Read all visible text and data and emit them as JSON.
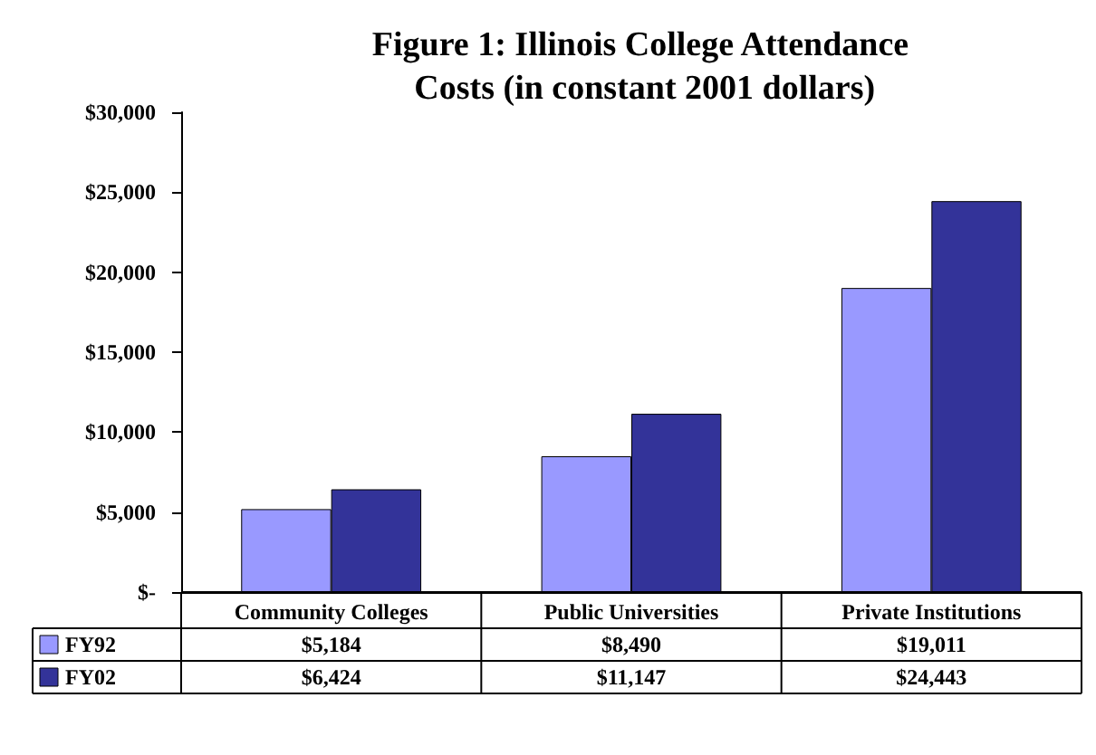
{
  "chart_data": {
    "type": "bar",
    "title": "Figure 1: Illinois College Attendance Costs (in constant 2001 dollars)",
    "categories": [
      "Community Colleges",
      "Public Universities",
      "Private Institutions"
    ],
    "series": [
      {
        "name": "FY92",
        "color": "#9999ff",
        "values": [
          5184,
          8490,
          19011
        ],
        "value_labels": [
          "$5,184",
          "$8,490",
          "$19,011"
        ]
      },
      {
        "name": "FY02",
        "color": "#333399",
        "values": [
          6424,
          11147,
          24443
        ],
        "value_labels": [
          "$6,424",
          "$11,147",
          "$24,443"
        ]
      }
    ],
    "ylim": [
      0,
      30000
    ],
    "yticks": [
      {
        "value": 0,
        "label": "$-"
      },
      {
        "value": 5000,
        "label": "$5,000"
      },
      {
        "value": 10000,
        "label": "$10,000"
      },
      {
        "value": 15000,
        "label": "$15,000"
      },
      {
        "value": 20000,
        "label": "$20,000"
      },
      {
        "value": 25000,
        "label": "$25,000"
      },
      {
        "value": 30000,
        "label": "$30,000"
      }
    ],
    "legend": "bottom",
    "grid": false
  }
}
